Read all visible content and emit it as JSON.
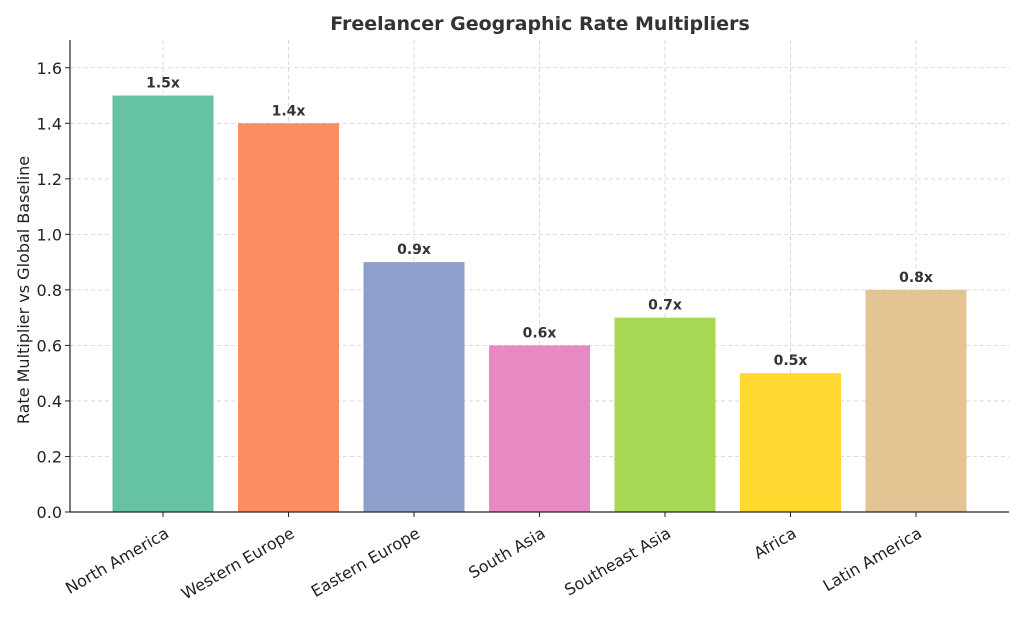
{
  "chart_data": {
    "type": "bar",
    "title": "Freelancer Geographic Rate Multipliers",
    "xlabel": "",
    "ylabel": "Rate Multiplier vs Global Baseline",
    "categories": [
      "North America",
      "Western Europe",
      "Eastern Europe",
      "South Asia",
      "Southeast Asia",
      "Africa",
      "Latin America"
    ],
    "values": [
      1.5,
      1.4,
      0.9,
      0.6,
      0.7,
      0.5,
      0.8
    ],
    "data_labels": [
      "1.5x",
      "1.4x",
      "0.9x",
      "0.6x",
      "0.7x",
      "0.5x",
      "0.8x"
    ],
    "colors": [
      "#66c2a5",
      "#fc8d62",
      "#8da0cb",
      "#e78ac3",
      "#a6d854",
      "#ffd92f",
      "#e5c494"
    ],
    "ylim": [
      0,
      1.7
    ],
    "yticks": [
      0.0,
      0.2,
      0.4,
      0.6,
      0.8,
      1.0,
      1.2,
      1.4,
      1.6
    ],
    "ytick_labels": [
      "0.0",
      "0.2",
      "0.4",
      "0.6",
      "0.8",
      "1.0",
      "1.2",
      "1.4",
      "1.6"
    ],
    "grid": true,
    "legend": "none"
  }
}
